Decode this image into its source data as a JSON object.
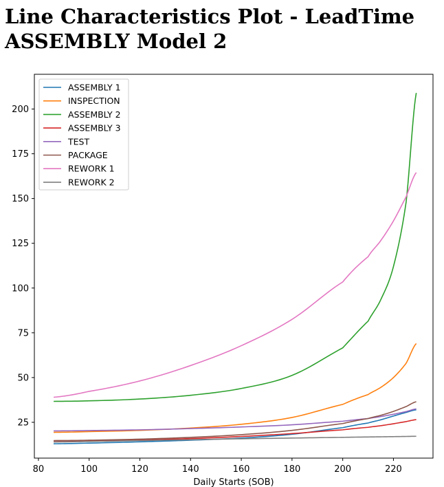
{
  "title": {
    "line1": "Line Characteristics Plot - LeadTime",
    "line2": "ASSEMBLY Model 2"
  },
  "chart_data": {
    "type": "line",
    "xlabel": "Daily Starts (SOB)",
    "ylabel": "",
    "xlim": [
      78.4,
      235.6
    ],
    "ylim": [
      5.0,
      219.4
    ],
    "xticks": [
      80,
      100,
      120,
      140,
      160,
      180,
      200,
      220
    ],
    "yticks": [
      25,
      50,
      75,
      100,
      125,
      150,
      175,
      200
    ],
    "grid": false,
    "legend_position": "top-left",
    "x": [
      86,
      100,
      120,
      140,
      160,
      180,
      200,
      210,
      215,
      220,
      225,
      229
    ],
    "series": [
      {
        "name": "ASSEMBLY 1",
        "color": "#1f77b4",
        "values": [
          13.0,
          13.4,
          14.1,
          15.0,
          16.2,
          18.3,
          22.0,
          24.6,
          26.4,
          28.5,
          30.5,
          32.0
        ]
      },
      {
        "name": "INSPECTION",
        "color": "#ff7f0e",
        "values": [
          19.4,
          19.8,
          20.5,
          21.8,
          23.9,
          27.7,
          35.0,
          40.5,
          44.5,
          50.0,
          58.0,
          69.0
        ]
      },
      {
        "name": "ASSEMBLY 2",
        "color": "#2ca02c",
        "values": [
          36.7,
          37.0,
          38.0,
          40.1,
          43.9,
          51.2,
          66.6,
          81.5,
          93.5,
          112.0,
          148.0,
          209.0
        ]
      },
      {
        "name": "ASSEMBLY 3",
        "color": "#d62728",
        "values": [
          14.2,
          14.5,
          15.1,
          15.9,
          17.1,
          18.7,
          20.8,
          22.2,
          23.1,
          24.2,
          25.4,
          26.5
        ]
      },
      {
        "name": "TEST",
        "color": "#9467bd",
        "values": [
          20.2,
          20.4,
          20.8,
          21.5,
          22.4,
          23.6,
          25.6,
          27.1,
          28.2,
          29.5,
          31.0,
          32.5
        ]
      },
      {
        "name": "PACKAGE",
        "color": "#8c564b",
        "values": [
          14.8,
          15.0,
          15.6,
          16.6,
          18.1,
          20.5,
          24.3,
          27.1,
          28.9,
          31.1,
          33.8,
          36.5
        ]
      },
      {
        "name": "REWORK 1",
        "color": "#e377c2",
        "values": [
          39.0,
          42.3,
          48.1,
          56.7,
          67.8,
          82.5,
          103.4,
          117.5,
          126.5,
          137.5,
          151.0,
          164.5
        ]
      },
      {
        "name": "REWORK 2",
        "color": "#7f7f7f",
        "values": [
          14.0,
          14.3,
          14.8,
          15.3,
          15.8,
          16.2,
          16.6,
          16.8,
          16.9,
          17.0,
          17.1,
          17.2
        ]
      }
    ]
  }
}
